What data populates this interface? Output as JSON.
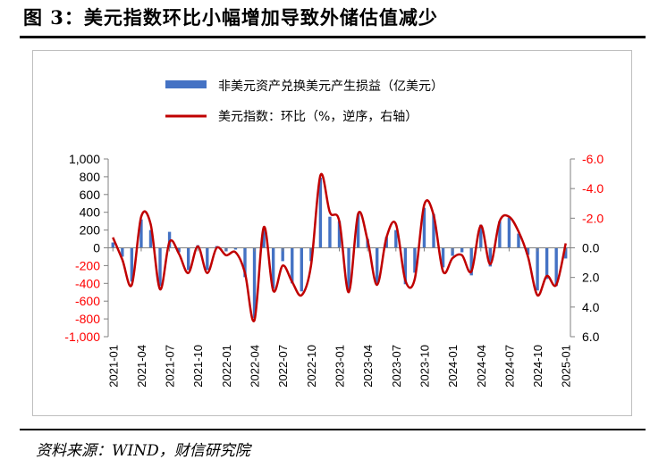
{
  "figure": {
    "title": "图 3：美元指数环比小幅增加导致外储估值减少",
    "source": "资料来源：WIND，财信研究院"
  },
  "colors": {
    "bar": "#4472C4",
    "line": "#C00000",
    "right_axis": "#FF0000"
  },
  "chart_data": {
    "type": "bar",
    "title": "",
    "legend_position": "top",
    "grid": false,
    "x": [
      "2021-01",
      "2021-02",
      "2021-03",
      "2021-04",
      "2021-05",
      "2021-06",
      "2021-07",
      "2021-08",
      "2021-09",
      "2021-10",
      "2021-11",
      "2021-12",
      "2022-01",
      "2022-02",
      "2022-03",
      "2022-04",
      "2022-05",
      "2022-06",
      "2022-07",
      "2022-08",
      "2022-09",
      "2022-10",
      "2022-11",
      "2022-12",
      "2023-01",
      "2023-02",
      "2023-03",
      "2023-04",
      "2023-05",
      "2023-06",
      "2023-07",
      "2023-08",
      "2023-09",
      "2023-10",
      "2023-11",
      "2023-12",
      "2024-01",
      "2024-02",
      "2024-03",
      "2024-04",
      "2024-05",
      "2024-06",
      "2024-07",
      "2024-08",
      "2024-09",
      "2024-10",
      "2024-11",
      "2024-12",
      "2025-01"
    ],
    "x_tick_labels": [
      "2021-01",
      "2021-04",
      "2021-07",
      "2021-10",
      "2022-01",
      "2022-04",
      "2022-07",
      "2022-10",
      "2023-01",
      "2023-04",
      "2023-07",
      "2023-10",
      "2024-01",
      "2024-04",
      "2024-07",
      "2024-10",
      "2025-01"
    ],
    "left_axis": {
      "ylim": [
        -1000,
        1000
      ],
      "ticks": [
        "1,000",
        "800",
        "600",
        "400",
        "200",
        "0",
        "-200",
        "-400",
        "-600",
        "-800",
        "-1,000"
      ]
    },
    "right_axis": {
      "ylim": [
        -6.0,
        6.0
      ],
      "inverted": true,
      "ticks": [
        "-6.0",
        "-4.0",
        "-2.0",
        "0.0",
        "2.0",
        "4.0",
        "6.0"
      ]
    },
    "series": [
      {
        "name": "非美元资产兑换美元产生损益（亿美元）",
        "type": "bar",
        "axis": "left",
        "values": [
          60,
          -100,
          -380,
          320,
          200,
          -430,
          180,
          -50,
          -250,
          30,
          -250,
          20,
          -40,
          -20,
          -330,
          -790,
          200,
          -460,
          -150,
          -400,
          -490,
          -150,
          790,
          350,
          300,
          -480,
          380,
          100,
          -400,
          120,
          200,
          -410,
          -280,
          450,
          380,
          -220,
          -90,
          -50,
          -310,
          260,
          -210,
          300,
          340,
          160,
          -80,
          -480,
          -350,
          -430,
          -120
        ]
      },
      {
        "name": "美元指数：环比（%，逆序，右轴）",
        "type": "line",
        "axis": "right",
        "values": [
          -0.7,
          0.8,
          2.5,
          -2.1,
          -1.6,
          2.8,
          -0.4,
          0.4,
          1.7,
          -0.1,
          1.7,
          0.0,
          0.5,
          0.3,
          1.7,
          4.9,
          -1.4,
          2.9,
          1.2,
          2.3,
          3.2,
          1.2,
          -4.9,
          -2.4,
          -1.8,
          3.0,
          -2.3,
          -0.5,
          2.5,
          -0.7,
          -1.6,
          2.2,
          2.1,
          -2.9,
          -2.2,
          1.6,
          0.7,
          0.5,
          1.6,
          -1.5,
          1.1,
          -1.8,
          -2.1,
          -1.1,
          0.6,
          3.2,
          1.9,
          2.5,
          -0.3
        ]
      }
    ]
  }
}
